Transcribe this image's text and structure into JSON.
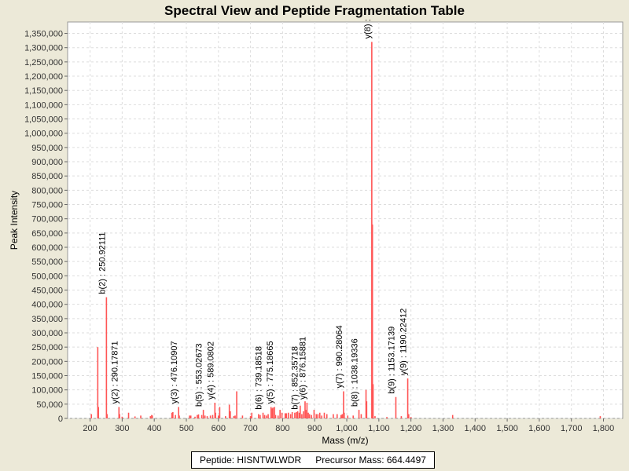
{
  "chart_data": {
    "type": "bar",
    "title": "Spectral View and Peptide Fragmentation Table",
    "xlabel": "Mass (m/z)",
    "ylabel": "Peak Intensity",
    "xlim": [
      130,
      1860
    ],
    "ylim": [
      0,
      1390000
    ],
    "xticks": [
      200,
      300,
      400,
      500,
      600,
      700,
      800,
      900,
      1000,
      1100,
      1200,
      1300,
      1400,
      1500,
      1600,
      1700,
      1800
    ],
    "xtick_labels": [
      "200",
      "300",
      "400",
      "500",
      "600",
      "700",
      "800",
      "900",
      "1,000",
      "1,100",
      "1,200",
      "1,300",
      "1,400",
      "1,500",
      "1,600",
      "1,700",
      "1,800"
    ],
    "yticks": [
      0,
      50000,
      100000,
      150000,
      200000,
      250000,
      300000,
      350000,
      400000,
      450000,
      500000,
      550000,
      600000,
      650000,
      700000,
      750000,
      800000,
      850000,
      900000,
      950000,
      1000000,
      1050000,
      1100000,
      1150000,
      1200000,
      1250000,
      1300000,
      1350000
    ],
    "ytick_labels": [
      "0",
      "50,000",
      "100,000",
      "150,000",
      "200,000",
      "250,000",
      "300,000",
      "350,000",
      "400,000",
      "450,000",
      "500,000",
      "550,000",
      "600,000",
      "650,000",
      "700,000",
      "750,000",
      "800,000",
      "850,000",
      "900,000",
      "950,000",
      "1,000,000",
      "1,050,000",
      "1,100,000",
      "1,150,000",
      "1,200,000",
      "1,250,000",
      "1,300,000",
      "1,350,000"
    ],
    "grid": true,
    "bar_color": "#ff5555",
    "peaks": [
      [
        204,
        15000
      ],
      [
        224,
        250000
      ],
      [
        226,
        40000
      ],
      [
        251,
        425000
      ],
      [
        253,
        15000
      ],
      [
        290,
        40000
      ],
      [
        292,
        15000
      ],
      [
        300,
        6000
      ],
      [
        320,
        20000
      ],
      [
        340,
        7000
      ],
      [
        358,
        10000
      ],
      [
        388,
        8000
      ],
      [
        392,
        12000
      ],
      [
        394,
        10000
      ],
      [
        455,
        20000
      ],
      [
        458,
        22000
      ],
      [
        466,
        12000
      ],
      [
        476,
        40000
      ],
      [
        478,
        10000
      ],
      [
        510,
        10000
      ],
      [
        514,
        10000
      ],
      [
        527,
        6000
      ],
      [
        534,
        12000
      ],
      [
        538,
        14000
      ],
      [
        548,
        12000
      ],
      [
        553,
        30000
      ],
      [
        558,
        10000
      ],
      [
        565,
        8000
      ],
      [
        575,
        10000
      ],
      [
        582,
        12000
      ],
      [
        589,
        55000
      ],
      [
        591,
        20000
      ],
      [
        600,
        10000
      ],
      [
        604,
        40000
      ],
      [
        622,
        8000
      ],
      [
        634,
        48000
      ],
      [
        637,
        25000
      ],
      [
        648,
        8000
      ],
      [
        652,
        10000
      ],
      [
        657,
        95000
      ],
      [
        675,
        10000
      ],
      [
        700,
        8000
      ],
      [
        704,
        20000
      ],
      [
        725,
        15000
      ],
      [
        730,
        12000
      ],
      [
        739,
        20000
      ],
      [
        744,
        12000
      ],
      [
        750,
        10000
      ],
      [
        755,
        15000
      ],
      [
        764,
        40000
      ],
      [
        768,
        35000
      ],
      [
        770,
        38000
      ],
      [
        775,
        40000
      ],
      [
        778,
        12000
      ],
      [
        786,
        10000
      ],
      [
        792,
        30000
      ],
      [
        798,
        20000
      ],
      [
        808,
        18000
      ],
      [
        812,
        18000
      ],
      [
        818,
        20000
      ],
      [
        825,
        15000
      ],
      [
        830,
        22000
      ],
      [
        838,
        20000
      ],
      [
        843,
        22000
      ],
      [
        847,
        25000
      ],
      [
        852,
        20000
      ],
      [
        855,
        45000
      ],
      [
        860,
        15000
      ],
      [
        865,
        25000
      ],
      [
        870,
        60000
      ],
      [
        872,
        30000
      ],
      [
        876,
        55000
      ],
      [
        880,
        20000
      ],
      [
        884,
        15000
      ],
      [
        890,
        12000
      ],
      [
        898,
        30000
      ],
      [
        905,
        15000
      ],
      [
        910,
        15000
      ],
      [
        916,
        20000
      ],
      [
        922,
        10000
      ],
      [
        930,
        20000
      ],
      [
        938,
        15000
      ],
      [
        958,
        15000
      ],
      [
        970,
        15000
      ],
      [
        982,
        12000
      ],
      [
        986,
        15000
      ],
      [
        990,
        95000
      ],
      [
        992,
        20000
      ],
      [
        1003,
        10000
      ],
      [
        1020,
        10000
      ],
      [
        1038,
        30000
      ],
      [
        1045,
        15000
      ],
      [
        1060,
        100000
      ],
      [
        1062,
        60000
      ],
      [
        1078,
        1320000
      ],
      [
        1080,
        680000
      ],
      [
        1082,
        120000
      ],
      [
        1088,
        8000
      ],
      [
        1125,
        5000
      ],
      [
        1153,
        75000
      ],
      [
        1170,
        8000
      ],
      [
        1190,
        140000
      ],
      [
        1193,
        15000
      ],
      [
        1200,
        5000
      ],
      [
        1330,
        12000
      ],
      [
        1790,
        8000
      ]
    ],
    "annotations": [
      {
        "mz": 251,
        "intensity": 425000,
        "label": "b(2) : 250.92111"
      },
      {
        "mz": 290,
        "intensity": 40000,
        "label": "y(2) : 290.17871"
      },
      {
        "mz": 476,
        "intensity": 40000,
        "label": "y(3) : 476.10907"
      },
      {
        "mz": 553,
        "intensity": 30000,
        "label": "b(5) : 553.02673"
      },
      {
        "mz": 589,
        "intensity": 55000,
        "label": "y(4) : 589.0802"
      },
      {
        "mz": 739,
        "intensity": 20000,
        "label": "b(6) : 739.18518"
      },
      {
        "mz": 775,
        "intensity": 40000,
        "label": "y(5) : 775.18665"
      },
      {
        "mz": 852,
        "intensity": 20000,
        "label": "b(7) : 852.35718"
      },
      {
        "mz": 876,
        "intensity": 55000,
        "label": "y(6) : 876.15881"
      },
      {
        "mz": 990,
        "intensity": 95000,
        "label": "y(7) : 990.28064"
      },
      {
        "mz": 1038,
        "intensity": 30000,
        "label": "b(8) : 1038.19336"
      },
      {
        "mz": 1078,
        "intensity": 1320000,
        "label": "y(8) :"
      },
      {
        "mz": 1153,
        "intensity": 75000,
        "label": "b(9) : 1153.17139"
      },
      {
        "mz": 1190,
        "intensity": 140000,
        "label": "y(9) : 1190.22412"
      }
    ]
  },
  "legend": {
    "peptide": "Peptide: HISNTWLWDR",
    "precursor": "Precursor Mass: 664.4497"
  }
}
